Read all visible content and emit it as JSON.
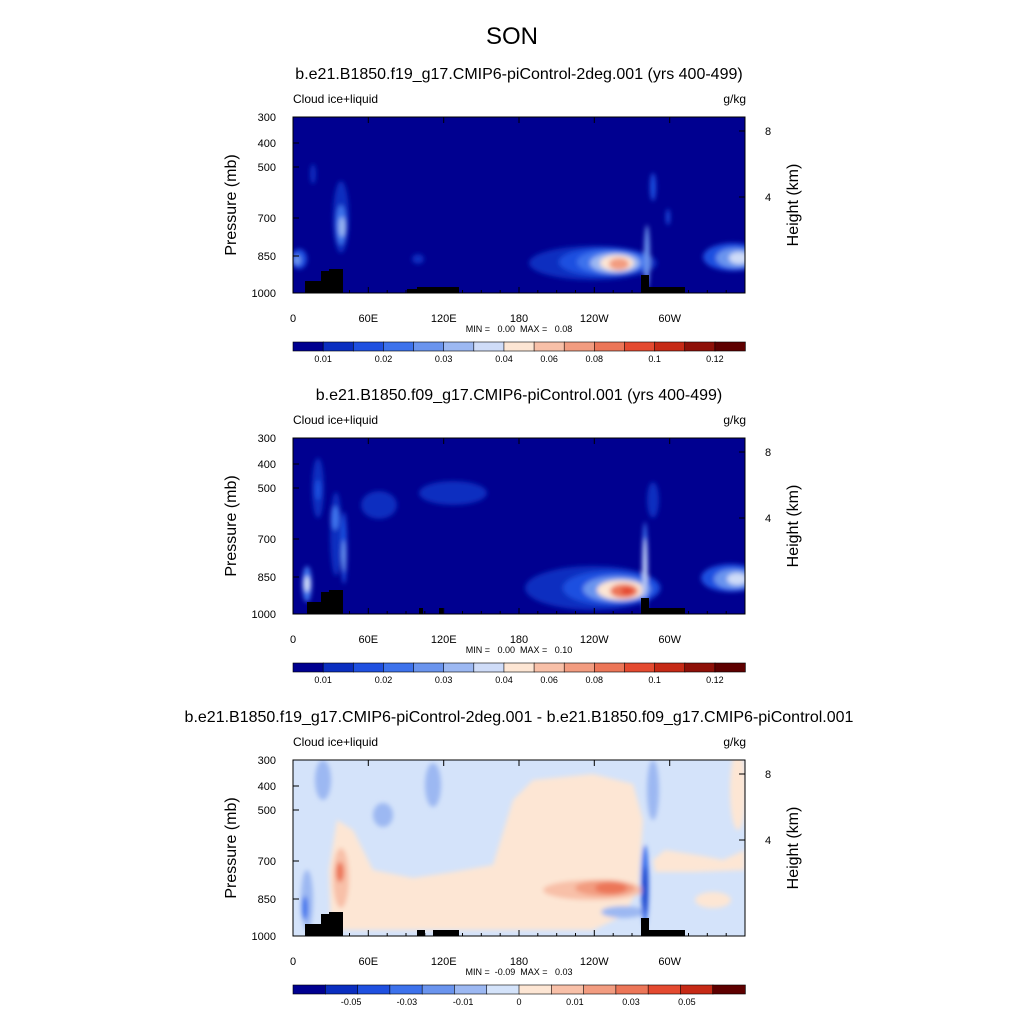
{
  "title": "SON",
  "chart_data": [
    {
      "type": "heatmap",
      "title": "b.e21.B1850.f19_g17.CMIP6-piControl-2deg.001 (yrs 400-499)",
      "left_label": "Cloud ice+liquid",
      "right_label": "g/kg",
      "ylabel": "Pressure (mb)",
      "ylabel_right": "Height (km)",
      "y_ticks": [
        "300",
        "400",
        "500",
        "700",
        "850",
        "1000"
      ],
      "y_right_ticks": [
        "8",
        "4"
      ],
      "x_ticks": [
        "0",
        "60E",
        "120E",
        "180",
        "120W",
        "60W"
      ],
      "stats": "MIN =   0.00  MAX =   0.08",
      "colorbar_labels": [
        "0.01",
        "0.02",
        "0.03",
        "0.04",
        "0.06",
        "0.08",
        "0.1",
        "0.12"
      ],
      "colorbar_colors": [
        "#000090",
        "#0a2ec0",
        "#1f50e0",
        "#3d72ec",
        "#6a94ee",
        "#9cb8f2",
        "#cfdcf8",
        "#fde6d4",
        "#f8c0a8",
        "#f29c80",
        "#ec7658",
        "#e44a30",
        "#c62a16",
        "#8e1008",
        "#5e0000"
      ]
    },
    {
      "type": "heatmap",
      "title": "b.e21.B1850.f09_g17.CMIP6-piControl.001 (yrs 400-499)",
      "left_label": "Cloud ice+liquid",
      "right_label": "g/kg",
      "ylabel": "Pressure (mb)",
      "ylabel_right": "Height (km)",
      "y_ticks": [
        "300",
        "400",
        "500",
        "700",
        "850",
        "1000"
      ],
      "y_right_ticks": [
        "8",
        "4"
      ],
      "x_ticks": [
        "0",
        "60E",
        "120E",
        "180",
        "120W",
        "60W"
      ],
      "stats": "MIN =   0.00  MAX =   0.10",
      "colorbar_labels": [
        "0.01",
        "0.02",
        "0.03",
        "0.04",
        "0.06",
        "0.08",
        "0.1",
        "0.12"
      ],
      "colorbar_colors": [
        "#000090",
        "#0a2ec0",
        "#1f50e0",
        "#3d72ec",
        "#6a94ee",
        "#9cb8f2",
        "#cfdcf8",
        "#fde6d4",
        "#f8c0a8",
        "#f29c80",
        "#ec7658",
        "#e44a30",
        "#c62a16",
        "#8e1008",
        "#5e0000"
      ]
    },
    {
      "type": "heatmap",
      "title": "b.e21.B1850.f19_g17.CMIP6-piControl-2deg.001 - b.e21.B1850.f09_g17.CMIP6-piControl.001",
      "left_label": "Cloud ice+liquid",
      "right_label": "g/kg",
      "ylabel": "Pressure (mb)",
      "ylabel_right": "Height (km)",
      "y_ticks": [
        "300",
        "400",
        "500",
        "700",
        "850",
        "1000"
      ],
      "y_right_ticks": [
        "8",
        "4"
      ],
      "x_ticks": [
        "0",
        "60E",
        "120E",
        "180",
        "120W",
        "60W"
      ],
      "stats": "MIN =  -0.09  MAX =   0.03",
      "colorbar_labels": [
        "-0.05",
        "-0.03",
        "-0.01",
        "0",
        "0.01",
        "0.03",
        "0.05"
      ],
      "colorbar_colors": [
        "#000090",
        "#0a2ec0",
        "#1f50e0",
        "#3d72ec",
        "#6a94ee",
        "#9cb8f2",
        "#d4e3fa",
        "#fde6d4",
        "#f8c0a8",
        "#f29c80",
        "#ec7658",
        "#e44a30",
        "#c62a16",
        "#5e0000"
      ]
    }
  ]
}
